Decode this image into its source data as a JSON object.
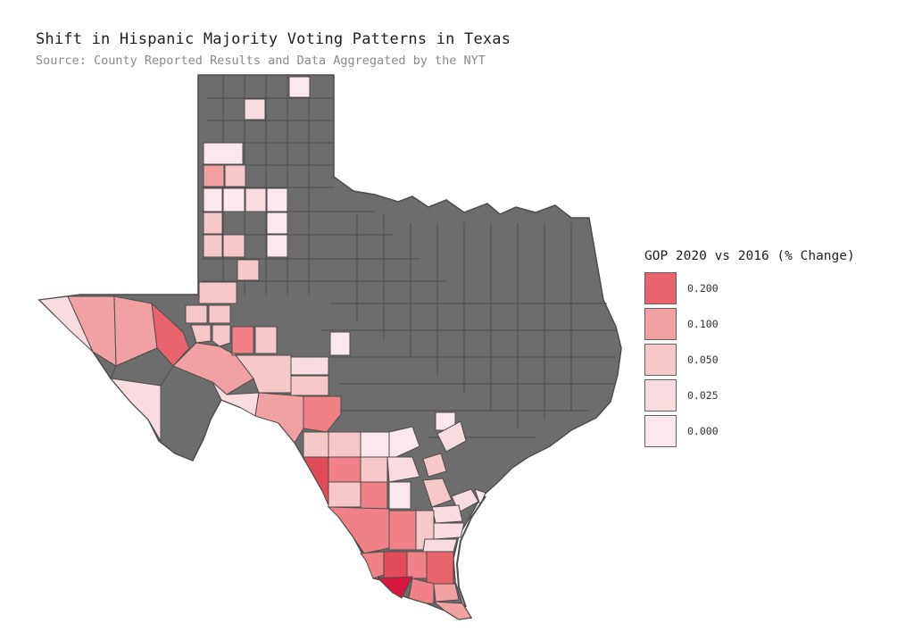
{
  "title": "Shift in Hispanic Majority Voting Patterns in Texas",
  "subtitle": "Source: County Reported Results and Data Aggregated by the NYT",
  "legend": {
    "title": "GOP 2020 vs 2016 (% Change)",
    "items": [
      {
        "label": "0.200",
        "color": "#e8636b"
      },
      {
        "label": "0.100",
        "color": "#f2a1a3"
      },
      {
        "label": "0.050",
        "color": "#f7c8c9"
      },
      {
        "label": "0.025",
        "color": "#f9dcdf"
      },
      {
        "label": "0.000",
        "color": "#fbe8ee"
      }
    ]
  },
  "colors": {
    "no_data": "#6d6d6d",
    "border": "#4d4d4d",
    "max_shift": "#d7173c"
  }
}
